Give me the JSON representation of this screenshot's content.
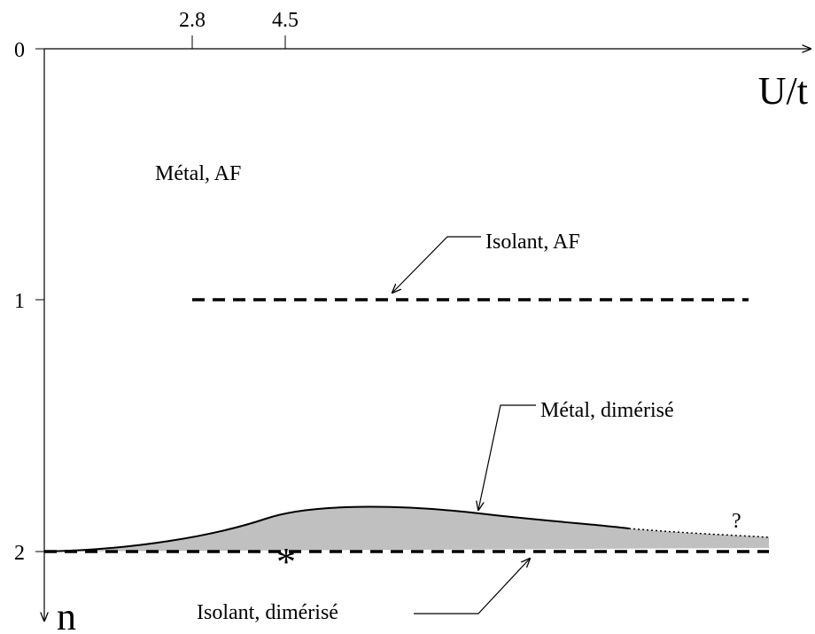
{
  "axes": {
    "x_label": "U/t",
    "y_label": "n",
    "x_ticks": [
      "2.8",
      "4.5"
    ],
    "y_ticks": [
      "0",
      "1",
      "2"
    ]
  },
  "labels": {
    "metal_af": "Métal, AF",
    "isolant_af": "Isolant, AF",
    "metal_dimerise": "Métal, dimérisé",
    "isolant_dimerise": "Isolant, dimérisé",
    "question": "?",
    "star": "*"
  }
}
